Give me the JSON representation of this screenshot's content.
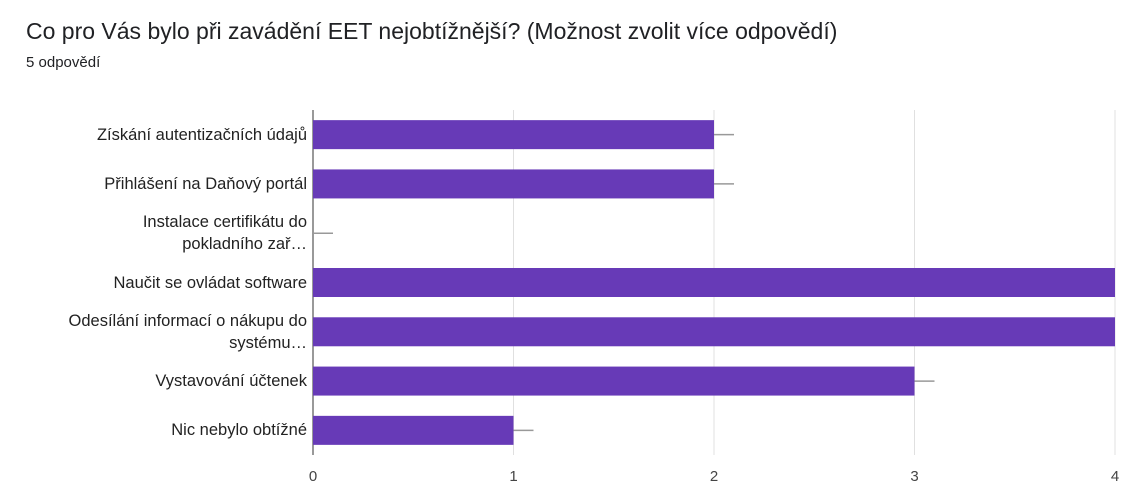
{
  "chart_data": {
    "type": "hbar",
    "title": "Co pro Vás bylo při zavádění EET nejobtížnější? (Možnost zvolit více odpovědí)",
    "subtitle": "5 odpovědí",
    "categories": [
      "Získání autentizačních údajů",
      "Přihlášení na Daňový portál",
      "Instalace certifikátu do\npokladního zař…",
      "Naučit se ovládat software",
      "Odesílání informací o nákupu do\nsystému…",
      "Vystavování účtenek",
      "Nic nebylo obtížné"
    ],
    "values": [
      2,
      2,
      0,
      4,
      4,
      3,
      1
    ],
    "color": "#673ab7",
    "xlim": [
      0,
      4
    ],
    "xticks": [
      0,
      1,
      2,
      3,
      4
    ],
    "grid": true
  }
}
